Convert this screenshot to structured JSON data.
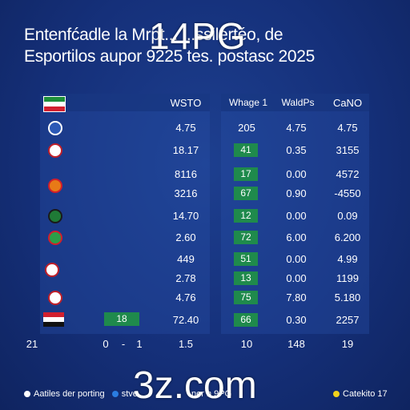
{
  "title_lines": [
    "Entenfćadle la Mrpt... ...ssilertéo, de",
    "Esportilos aupor 9225 tes. postasc 2025"
  ],
  "watermarks": {
    "top": "14PG",
    "bottom": "3z.com"
  },
  "headers": {
    "col1": "WSTO",
    "col2": "Whage 1",
    "col3": "WaldPs",
    "col4": "CaNO"
  },
  "rows": [
    {
      "c1": "4.75",
      "c2": "205",
      "c2_green": false,
      "c3": "4.75",
      "c4": "4.75"
    },
    {
      "c1": "18.17",
      "c2": "41",
      "c2_green": true,
      "c3": "0.35",
      "c4": "3155"
    },
    {
      "c1": "8116",
      "c2": "17",
      "c2_green": true,
      "c3": "0.00",
      "c4": "4572"
    },
    {
      "c1": "3216",
      "c2": "67",
      "c2_green": true,
      "c3": "0.90",
      "c4": "-4550"
    },
    {
      "c1": "14.70",
      "c2": "12",
      "c2_green": true,
      "c3": "0.00",
      "c4": "0.09"
    },
    {
      "c1": "2.60",
      "c2": "72",
      "c2_green": true,
      "c3": "6.00",
      "c4": "6.200"
    },
    {
      "c1": "449",
      "c2": "51",
      "c2_green": true,
      "c3": "0.00",
      "c4": "4.99"
    },
    {
      "c1": "2.78",
      "c2": "13",
      "c2_green": true,
      "c3": "0.00",
      "c4": "1199"
    },
    {
      "c1": "4.76",
      "c2": "75",
      "c2_green": true,
      "c3": "7.80",
      "c4": "5.180"
    },
    {
      "c1": "72.40",
      "c2": "66",
      "c2_green": true,
      "c3": "0.30",
      "c4": "2257"
    }
  ],
  "left_badge": "18",
  "totals": {
    "a": "21",
    "b": "0",
    "c": "-",
    "d": "1",
    "e": "1.5",
    "f": "10",
    "g": "148",
    "h": "19"
  },
  "footer": {
    "left_text": "Aatiles der porting",
    "mid_text": "stve",
    "mid_text2": "ner n 9PG",
    "right_text": "Catekito 17"
  },
  "colors": {
    "accent_green": "#1f8a4c",
    "legend_blue": "#2a7de1",
    "legend_yellow": "#f2d21b"
  }
}
